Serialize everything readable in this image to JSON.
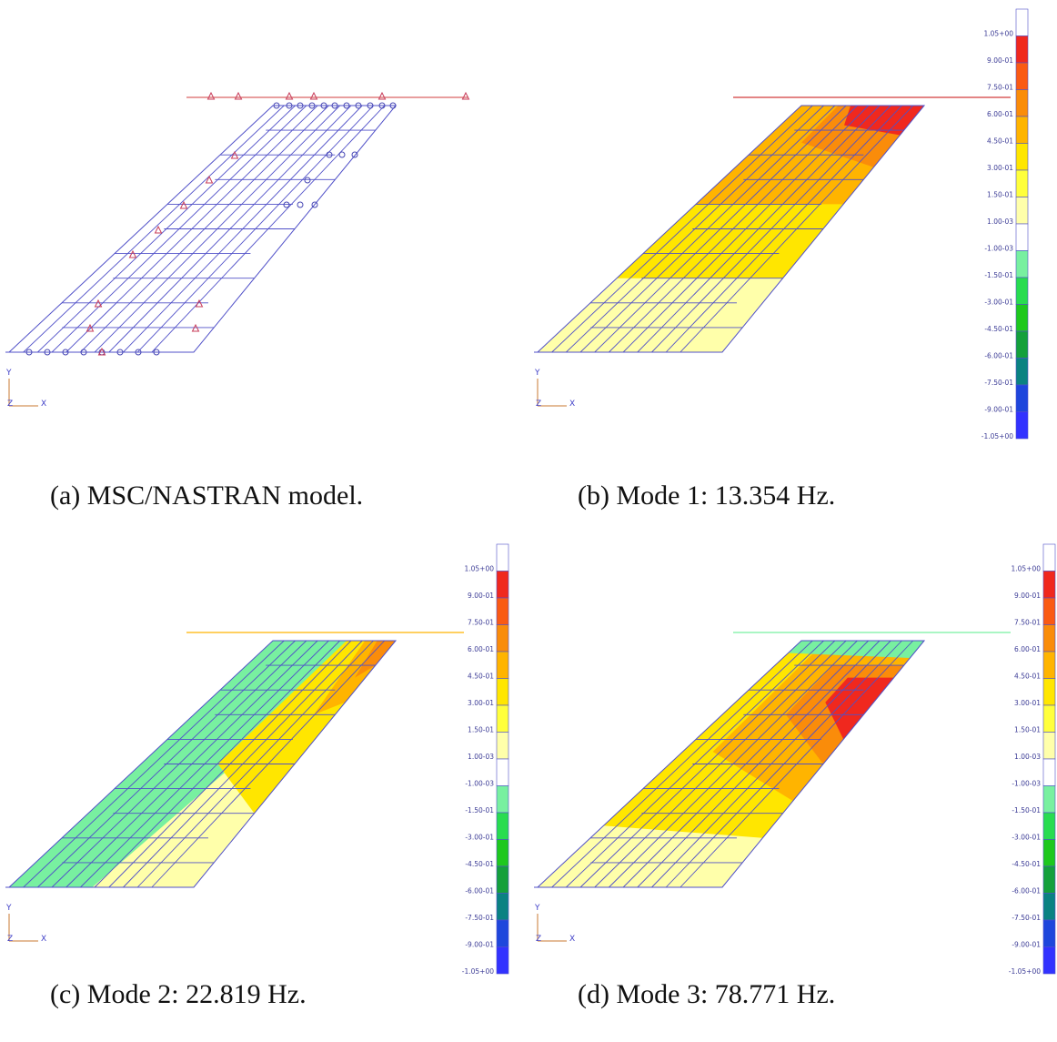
{
  "figure": {
    "panels": [
      {
        "id": "a",
        "caption": "(a) MSC/NASTRAN model.",
        "type": "model"
      },
      {
        "id": "b",
        "caption": "(b) Mode 1: 13.354 Hz.",
        "type": "contour",
        "mode": 1,
        "frequency_hz": 13.354
      },
      {
        "id": "c",
        "caption": "(c) Mode 2: 22.819 Hz.",
        "type": "contour",
        "mode": 2,
        "frequency_hz": 22.819
      },
      {
        "id": "d",
        "caption": "(d) Mode 3: 78.771 Hz.",
        "type": "contour",
        "mode": 3,
        "frequency_hz": 78.771
      }
    ],
    "axis_labels": {
      "y": "Y",
      "z": "Z",
      "x": "X"
    },
    "colorbar": {
      "labels": [
        "1.05+00",
        "9.00-01",
        "7.50-01",
        "6.00-01",
        "4.50-01",
        "3.00-01",
        "1.50-01",
        "1.00-03",
        "-1.00-03",
        "-1.50-01",
        "-3.00-01",
        "-4.50-01",
        "-6.00-01",
        "-7.50-01",
        "-9.00-01",
        "-1.05+00"
      ],
      "colors": [
        "#ffffff",
        "#f0281e",
        "#fa5a14",
        "#fa8c0a",
        "#ffb400",
        "#ffe600",
        "#ffff3c",
        "#ffffaa",
        "#ffffff",
        "#78f0a0",
        "#28dc50",
        "#1ec81e",
        "#14a03c",
        "#0a8282",
        "#1e46dc",
        "#3232ff"
      ]
    },
    "colors": {
      "mesh": "#5050c8",
      "boundary": "#d23c3c",
      "constraint_marker": "#c83c5a",
      "node_marker": "#4646b4",
      "red": "#f0281e",
      "orange_red": "#fa5a14",
      "orange": "#fa8c0a",
      "light_orange": "#ffb400",
      "yellow": "#ffe600",
      "pale_yellow": "#ffffaa",
      "light_green": "#78f0a0"
    }
  }
}
